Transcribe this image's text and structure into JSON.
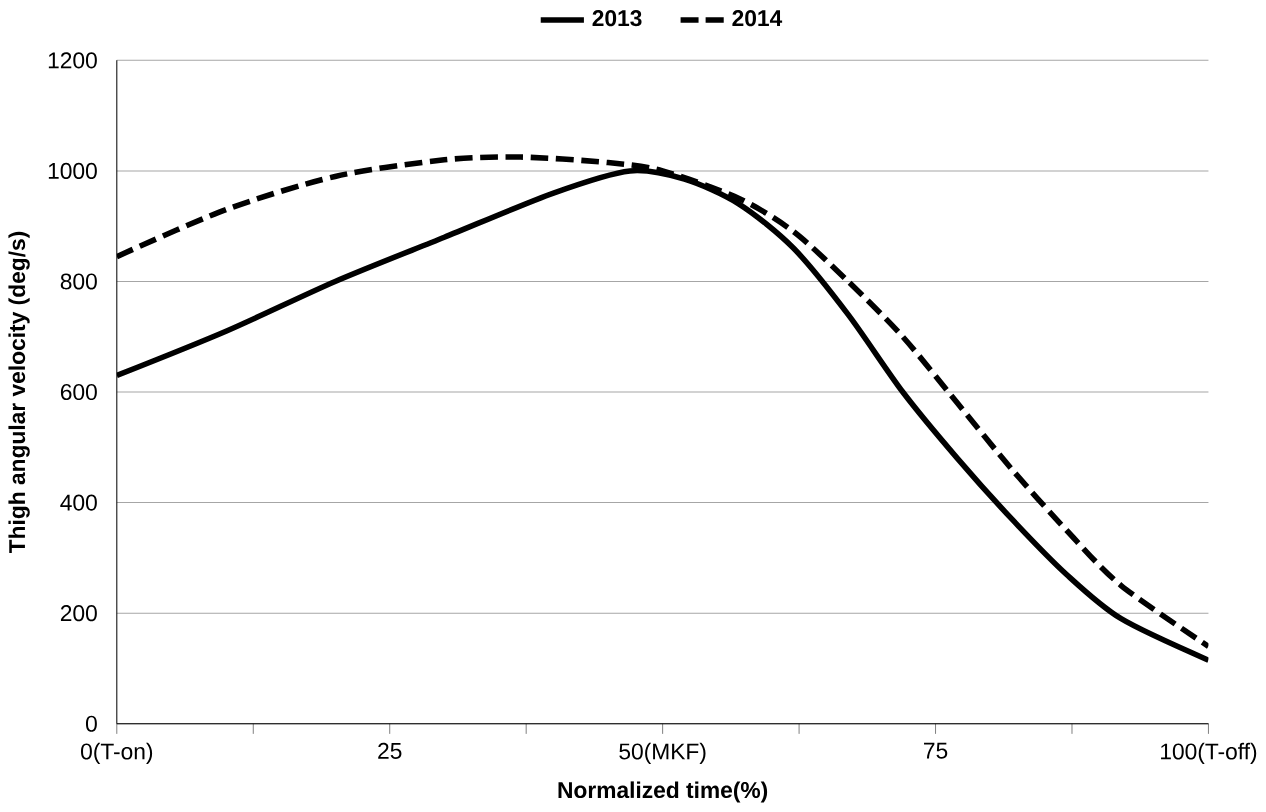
{
  "chart_data": {
    "type": "line",
    "xlabel": "Normalized   time(%)",
    "ylabel": "Thigh angular   velocity (deg/s)",
    "xlim": [
      0,
      100
    ],
    "xticks": [
      {
        "value": 0,
        "label": "0(T-on)"
      },
      {
        "value": 12.5,
        "label": null
      },
      {
        "value": 25,
        "label": "25"
      },
      {
        "value": 37.5,
        "label": null
      },
      {
        "value": 50,
        "label": "50(MKF)"
      },
      {
        "value": 62.5,
        "label": null
      },
      {
        "value": 75,
        "label": "75"
      },
      {
        "value": 87.5,
        "label": null
      },
      {
        "value": 100,
        "label": "100(T-off)"
      }
    ],
    "ylim": [
      0,
      1200
    ],
    "yticks": [
      0,
      200,
      400,
      600,
      800,
      1000,
      1200
    ],
    "grid": "y",
    "legend": "top",
    "marker": "none",
    "series": [
      {
        "name": "2013",
        "color": "#000000",
        "line_style": "solid",
        "x": [
          0,
          10,
          20,
          30,
          40,
          47,
          52,
          57,
          62,
          67,
          72,
          77,
          82,
          87,
          92,
          100
        ],
        "values": [
          630,
          710,
          800,
          880,
          960,
          1000,
          985,
          940,
          860,
          740,
          600,
          480,
          370,
          270,
          190,
          115
        ]
      },
      {
        "name": "2014",
        "color": "#000000",
        "line_style": "dashed",
        "x": [
          0,
          10,
          20,
          30,
          37,
          45,
          50,
          57,
          62,
          67,
          72,
          77,
          82,
          87,
          92,
          100
        ],
        "values": [
          845,
          930,
          990,
          1020,
          1025,
          1015,
          1000,
          950,
          890,
          800,
          700,
          580,
          460,
          350,
          250,
          140
        ]
      }
    ]
  }
}
